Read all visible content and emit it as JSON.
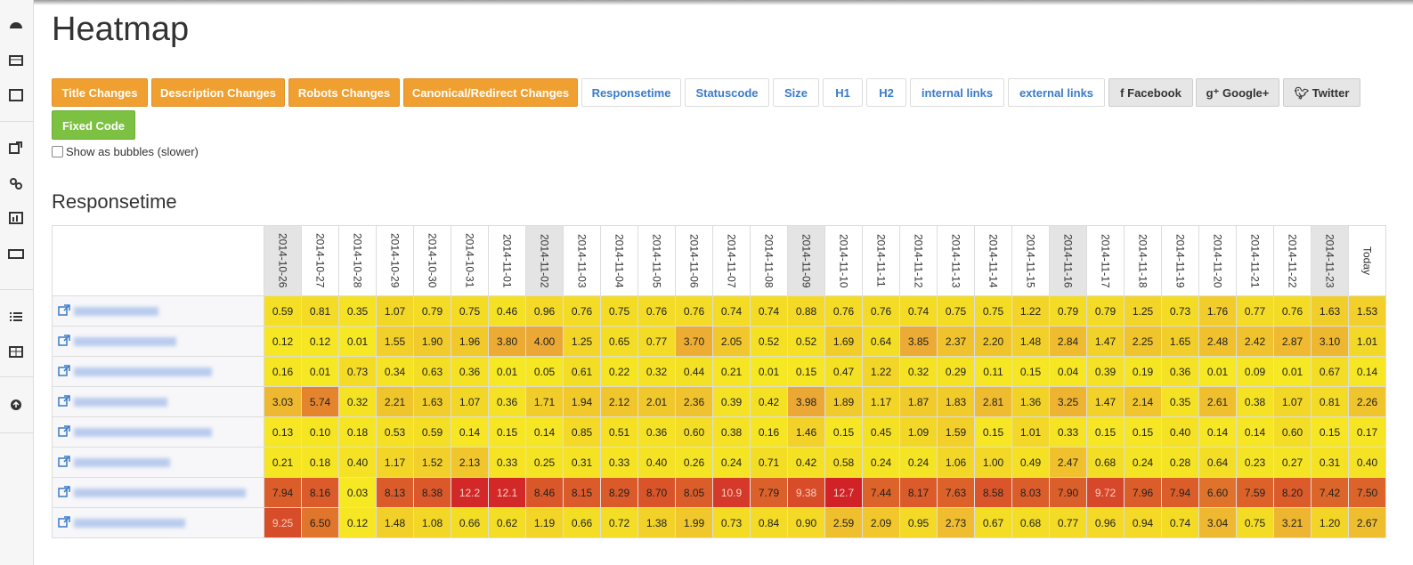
{
  "header": {
    "title": "Heatmap"
  },
  "buttons": [
    "Title Changes",
    "Description Changes",
    "Robots Changes",
    "Canonical/Redirect Changes",
    "Responsetime",
    "Statuscode",
    "Size",
    "H1",
    "H2",
    "internal links",
    "external links",
    "Facebook",
    "Google+",
    "Twitter",
    "Fixed Code"
  ],
  "checkbox_label": "Show as bubbles (slower)",
  "section_title": "Responsetime",
  "table": {
    "columns": [
      "2014-10-26",
      "2014-10-27",
      "2014-10-28",
      "2014-10-29",
      "2014-10-30",
      "2014-10-31",
      "2014-11-01",
      "2014-11-02",
      "2014-11-03",
      "2014-11-04",
      "2014-11-05",
      "2014-11-06",
      "2014-11-07",
      "2014-11-08",
      "2014-11-09",
      "2014-11-10",
      "2014-11-11",
      "2014-11-12",
      "2014-11-13",
      "2014-11-14",
      "2014-11-15",
      "2014-11-16",
      "2014-11-17",
      "2014-11-18",
      "2014-11-19",
      "2014-11-20",
      "2014-11-21",
      "2014-11-22",
      "2014-11-23",
      "Today"
    ],
    "rows": [
      [
        "0.59",
        "0.81",
        "0.35",
        "1.07",
        "0.79",
        "0.75",
        "0.46",
        "0.96",
        "0.76",
        "0.75",
        "0.76",
        "0.76",
        "0.74",
        "0.74",
        "0.88",
        "0.76",
        "0.76",
        "0.74",
        "0.75",
        "0.75",
        "1.22",
        "0.79",
        "0.79",
        "1.25",
        "0.73",
        "1.76",
        "0.77",
        "0.76",
        "1.63",
        "1.53"
      ],
      [
        "0.12",
        "0.12",
        "0.01",
        "1.55",
        "1.90",
        "1.96",
        "3.80",
        "4.00",
        "1.25",
        "0.65",
        "0.77",
        "3.70",
        "2.05",
        "0.52",
        "0.52",
        "1.69",
        "0.64",
        "3.85",
        "2.37",
        "2.20",
        "1.48",
        "2.84",
        "1.47",
        "2.25",
        "1.65",
        "2.48",
        "2.42",
        "2.87",
        "3.10",
        "1.01"
      ],
      [
        "0.16",
        "0.01",
        "0.73",
        "0.34",
        "0.63",
        "0.36",
        "0.01",
        "0.05",
        "0.61",
        "0.22",
        "0.32",
        "0.44",
        "0.21",
        "0.01",
        "0.15",
        "0.47",
        "1.22",
        "0.32",
        "0.29",
        "0.11",
        "0.15",
        "0.04",
        "0.39",
        "0.19",
        "0.36",
        "0.01",
        "0.09",
        "0.01",
        "0.67",
        "0.14"
      ],
      [
        "3.03",
        "5.74",
        "0.32",
        "2.21",
        "1.63",
        "1.07",
        "0.36",
        "1.71",
        "1.94",
        "2.12",
        "2.01",
        "2.36",
        "0.39",
        "0.42",
        "3.98",
        "1.89",
        "1.17",
        "1.87",
        "1.83",
        "2.81",
        "1.36",
        "3.25",
        "1.47",
        "2.14",
        "0.35",
        "2.61",
        "0.38",
        "1.07",
        "0.81",
        "2.26"
      ],
      [
        "0.13",
        "0.10",
        "0.18",
        "0.53",
        "0.59",
        "0.14",
        "0.15",
        "0.14",
        "0.85",
        "0.51",
        "0.36",
        "0.60",
        "0.38",
        "0.16",
        "1.46",
        "0.15",
        "0.45",
        "1.09",
        "1.59",
        "0.15",
        "1.01",
        "0.33",
        "0.15",
        "0.15",
        "0.40",
        "0.14",
        "0.14",
        "0.60",
        "0.15",
        "0.17"
      ],
      [
        "0.21",
        "0.18",
        "0.40",
        "1.17",
        "1.52",
        "2.13",
        "0.33",
        "0.25",
        "0.31",
        "0.33",
        "0.40",
        "0.26",
        "0.24",
        "0.71",
        "0.42",
        "0.58",
        "0.24",
        "0.24",
        "1.06",
        "1.00",
        "0.49",
        "2.47",
        "0.68",
        "0.24",
        "0.28",
        "0.64",
        "0.23",
        "0.27",
        "0.31",
        "0.40"
      ],
      [
        "7.94",
        "8.16",
        "0.03",
        "8.13",
        "8.38",
        "12.2",
        "12.1",
        "8.46",
        "8.15",
        "8.29",
        "8.70",
        "8.05",
        "10.9",
        "7.79",
        "9.38",
        "12.7",
        "7.44",
        "8.17",
        "7.63",
        "8.58",
        "8.03",
        "7.90",
        "9.72",
        "7.96",
        "7.94",
        "6.60",
        "7.59",
        "8.20",
        "7.42",
        "7.50"
      ],
      [
        "9.25",
        "6.50",
        "0.12",
        "1.48",
        "1.08",
        "0.66",
        "0.62",
        "1.19",
        "0.66",
        "0.72",
        "1.38",
        "1.99",
        "0.73",
        "0.84",
        "0.90",
        "2.59",
        "2.09",
        "0.95",
        "2.73",
        "0.67",
        "0.68",
        "0.77",
        "0.96",
        "0.94",
        "0.74",
        "3.04",
        "0.75",
        "3.21",
        "1.20",
        "2.67"
      ]
    ]
  }
}
